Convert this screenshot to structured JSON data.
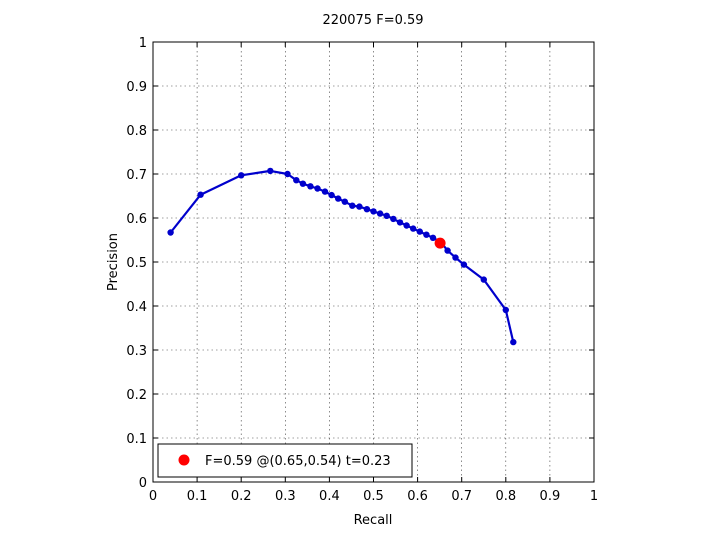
{
  "chart_data": {
    "type": "line",
    "title": "220075 F=0.59",
    "xlabel": "Recall",
    "ylabel": "Precision",
    "xlim": [
      0,
      1
    ],
    "ylim": [
      0,
      1
    ],
    "grid": true,
    "xticks": [
      "0",
      "0.1",
      "0.2",
      "0.3",
      "0.4",
      "0.5",
      "0.6",
      "0.7",
      "0.8",
      "0.9",
      "1"
    ],
    "yticks": [
      "0",
      "0.1",
      "0.2",
      "0.3",
      "0.4",
      "0.5",
      "0.6",
      "0.7",
      "0.8",
      "0.9",
      "1"
    ],
    "series": [
      {
        "color": "#0000cc",
        "x": [
          0.04,
          0.108,
          0.2,
          0.266,
          0.305,
          0.325,
          0.34,
          0.357,
          0.373,
          0.39,
          0.405,
          0.42,
          0.435,
          0.452,
          0.468,
          0.485,
          0.5,
          0.515,
          0.53,
          0.545,
          0.56,
          0.575,
          0.59,
          0.605,
          0.62,
          0.635,
          0.652,
          0.668,
          0.686,
          0.705,
          0.75,
          0.8,
          0.817
        ],
        "y": [
          0.567,
          0.653,
          0.697,
          0.707,
          0.7,
          0.686,
          0.678,
          0.672,
          0.667,
          0.66,
          0.652,
          0.644,
          0.637,
          0.628,
          0.626,
          0.62,
          0.615,
          0.61,
          0.605,
          0.598,
          0.59,
          0.583,
          0.576,
          0.569,
          0.562,
          0.555,
          0.546,
          0.526,
          0.51,
          0.494,
          0.46,
          0.391,
          0.318
        ]
      }
    ],
    "best_point": {
      "x": 0.651,
      "y": 0.543,
      "color": "#ff0000"
    },
    "legend": {
      "position": "bottom-left",
      "label": "F=0.59 @(0.65,0.54) t=0.23"
    }
  }
}
